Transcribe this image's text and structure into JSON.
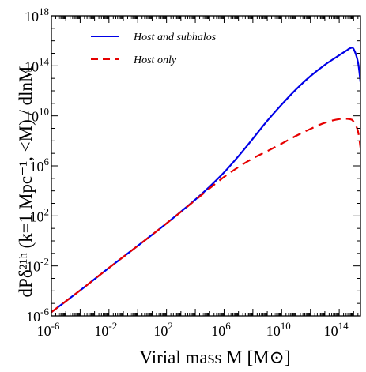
{
  "chart_data": {
    "type": "line",
    "xlabel": "Virial mass M [M⊙]",
    "ylabel": "dPδ²¹ʰ (k=1 Mpc⁻¹, <M) / dlnM",
    "xscale": "log",
    "yscale": "log",
    "xlim": [
      1e-06,
      3000000000000000.0
    ],
    "ylim": [
      1e-06,
      1e+18
    ],
    "x_ticks": [
      {
        "label": "10",
        "exp": "-6"
      },
      {
        "label": "10",
        "exp": "-2"
      },
      {
        "label": "10",
        "exp": "2"
      },
      {
        "label": "10",
        "exp": "6"
      },
      {
        "label": "10",
        "exp": "10"
      },
      {
        "label": "10",
        "exp": "14"
      }
    ],
    "y_ticks": [
      {
        "label": "10",
        "exp": "-6"
      },
      {
        "label": "10",
        "exp": "-2"
      },
      {
        "label": "10",
        "exp": "2"
      },
      {
        "label": "10",
        "exp": "6"
      },
      {
        "label": "10",
        "exp": "10"
      },
      {
        "label": "10",
        "exp": "14"
      },
      {
        "label": "10",
        "exp": "18"
      }
    ],
    "legend_position": "top-left",
    "series": [
      {
        "name": "Host and subhalos",
        "color": "#0000e6",
        "style": "solid",
        "x": [
          1e-06,
          0.0001,
          0.01,
          1,
          100.0,
          10000.0,
          100000.0,
          1000000.0,
          10000000.0,
          100000000.0,
          1000000000.0,
          10000000000.0,
          100000000000.0,
          1000000000000.0,
          10000000000000.0,
          100000000000000.0,
          300000000000000.0,
          600000000000000.0,
          1000000000000000.0,
          2000000000000000.0,
          3000000000000000.0
        ],
        "y": [
          2e-06,
          0.00011,
          0.007,
          0.4,
          25,
          2000,
          22000.0,
          300000.0,
          6000000.0,
          150000000.0,
          4000000000.0,
          80000000000.0,
          1300000000000.0,
          15000000000000.0,
          120000000000000.0,
          700000000000000.0,
          1600000000000000.0,
          2600000000000000.0,
          2200000000000000.0,
          200000000000000.0,
          5000000000000.0
        ]
      },
      {
        "name": "Host only",
        "color": "#e60000",
        "style": "dashed",
        "x": [
          1e-06,
          0.0001,
          0.01,
          1,
          100.0,
          10000.0,
          100000.0,
          1000000.0,
          10000000.0,
          100000000.0,
          1000000000.0,
          10000000000.0,
          100000000000.0,
          1000000000000.0,
          10000000000000.0,
          100000000000000.0,
          500000000000000.0,
          1000000000000000.0,
          2000000000000000.0,
          3000000000000000.0
        ],
        "y": [
          2e-06,
          0.00011,
          0.007,
          0.4,
          25,
          1800,
          16000.0,
          130000.0,
          800000.0,
          4000000.0,
          15000000.0,
          60000000.0,
          250000000.0,
          900000000.0,
          2800000000.0,
          5500000000.0,
          5500000000.0,
          3500000000.0,
          600000000.0,
          28000000.0
        ]
      }
    ]
  }
}
